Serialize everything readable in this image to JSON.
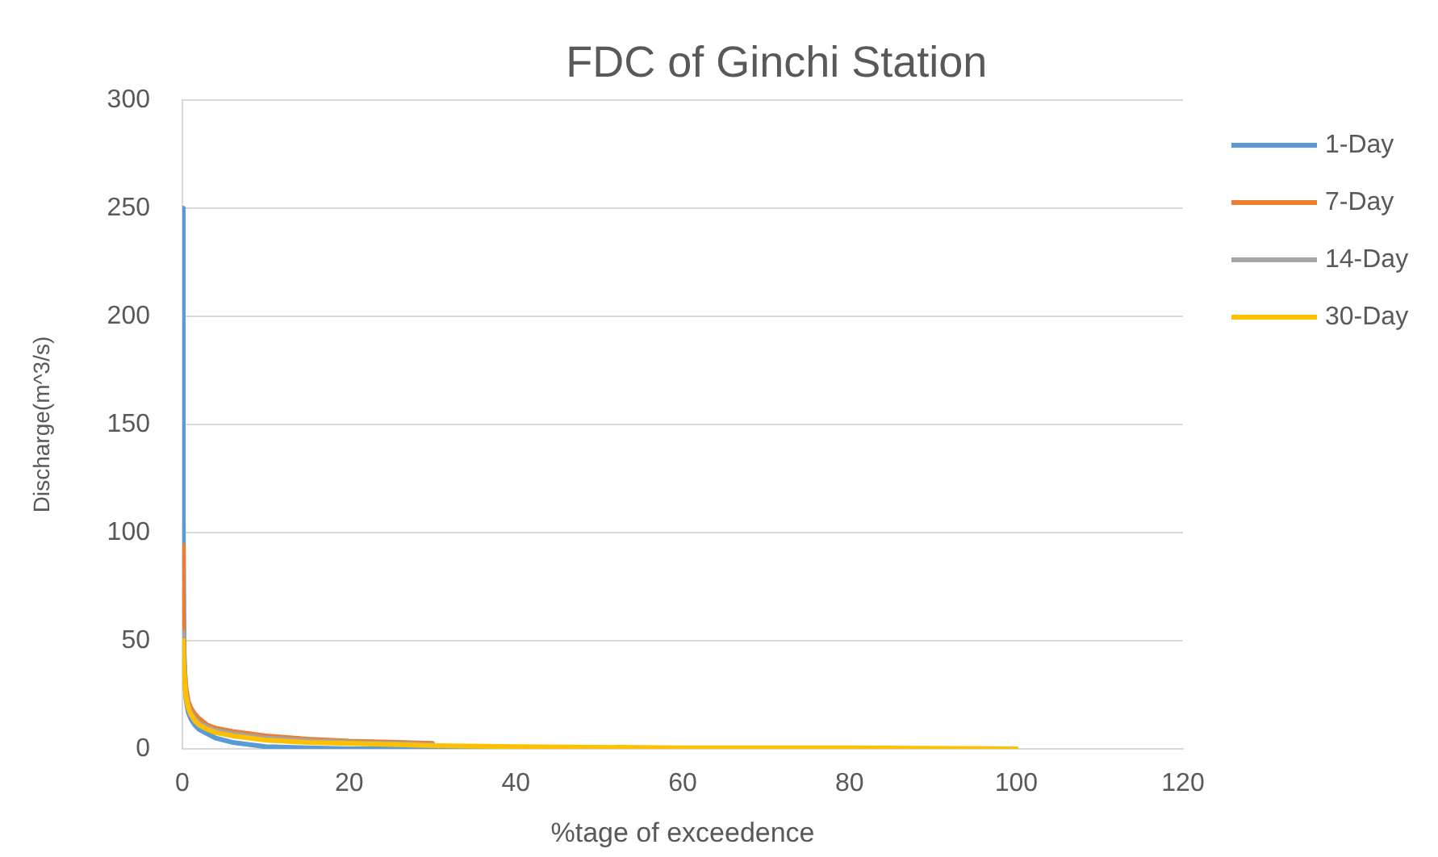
{
  "chart_data": {
    "type": "line",
    "title": "FDC of Ginchi Station",
    "xlabel": "%tage of exceedence",
    "ylabel": "Discharge(m^3/s)",
    "xlim": [
      0,
      120
    ],
    "xticks": [
      0,
      20,
      40,
      60,
      80,
      100,
      120
    ],
    "ylim": [
      0,
      300
    ],
    "yticks": [
      0,
      50,
      100,
      150,
      200,
      250,
      300
    ],
    "grid": "y",
    "legend": "right",
    "marker": "none",
    "series": [
      {
        "name": "1-Day",
        "color": "#5b9bd5",
        "x": [
          0,
          0.1,
          0.2,
          0.4,
          0.7,
          1,
          1.5,
          2,
          3,
          4,
          6,
          8,
          10,
          15,
          20,
          30,
          40
        ],
        "values": [
          250,
          110,
          45,
          24,
          17,
          14,
          11,
          9,
          7,
          5,
          3,
          2,
          1,
          0.5,
          0,
          0,
          0
        ]
      },
      {
        "name": "7-Day",
        "color": "#ed7d31",
        "x": [
          0,
          0.1,
          0.2,
          0.4,
          0.7,
          1,
          1.5,
          2,
          3,
          4,
          6,
          8,
          10,
          15,
          20,
          30
        ],
        "values": [
          94,
          60,
          40,
          29,
          22,
          19,
          16,
          14,
          11,
          9.5,
          8,
          7,
          6,
          4.5,
          3.5,
          2.5
        ]
      },
      {
        "name": "14-Day",
        "color": "#a5a5a5",
        "x": [
          0,
          0.1,
          0.2,
          0.4,
          0.7,
          1,
          1.5,
          2,
          3,
          4,
          6,
          8,
          10,
          15,
          20,
          30
        ],
        "values": [
          54,
          50,
          38,
          27,
          20,
          17,
          14,
          12,
          10,
          8.5,
          7,
          6,
          5,
          3.8,
          3,
          2
        ]
      },
      {
        "name": "30-Day",
        "color": "#ffc000",
        "x": [
          0,
          0.1,
          0.2,
          0.4,
          0.7,
          1,
          1.5,
          2,
          3,
          4,
          6,
          8,
          10,
          15,
          20,
          30,
          40,
          60,
          80,
          100
        ],
        "values": [
          50,
          45,
          35,
          25,
          19,
          16,
          13,
          11,
          9,
          7.5,
          6,
          5,
          4,
          3,
          2.5,
          1.5,
          1,
          0.5,
          0.5,
          0
        ]
      }
    ]
  }
}
